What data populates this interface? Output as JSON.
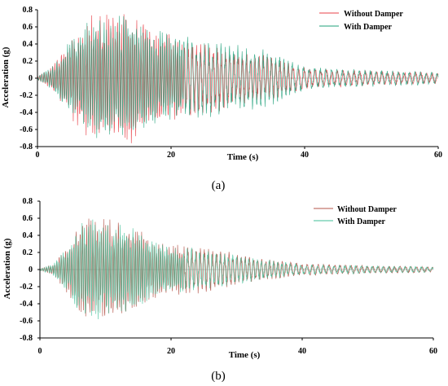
{
  "figure": {
    "panels": [
      {
        "caption": "(a)"
      },
      {
        "caption": "(b)"
      }
    ]
  },
  "colors": {
    "without_damper": "#e8424a",
    "with_damper": "#1fa07a",
    "axis": "#000000",
    "zero_line": "#9a9a9a"
  },
  "chart_data": [
    {
      "type": "line",
      "panel": "a",
      "xlabel": "Time (s)",
      "ylabel": "Acceleration (g)",
      "xlim": [
        0,
        60
      ],
      "ylim": [
        -0.8,
        0.8
      ],
      "xticks": [
        0,
        20,
        40,
        60
      ],
      "yticks": [
        -0.8,
        -0.6,
        -0.4,
        -0.2,
        0,
        0.2,
        0.4,
        0.6,
        0.8
      ],
      "legend_position": "top-right",
      "series": [
        {
          "name": "Without Damper",
          "color": "#e8424a",
          "envelope_time": [
            0,
            2,
            4,
            6,
            8,
            10,
            12,
            14,
            16,
            18,
            20,
            22,
            24,
            26,
            28,
            30,
            32,
            34,
            36,
            38,
            40,
            44,
            48,
            52,
            56,
            60
          ],
          "envelope_peak": [
            0.02,
            0.12,
            0.35,
            0.55,
            0.7,
            0.72,
            0.74,
            0.75,
            0.65,
            0.55,
            0.5,
            0.45,
            0.42,
            0.4,
            0.36,
            0.3,
            0.28,
            0.26,
            0.22,
            0.18,
            0.12,
            0.1,
            0.09,
            0.08,
            0.07,
            0.06
          ]
        },
        {
          "name": "With Damper",
          "color": "#1fa07a",
          "envelope_time": [
            0,
            2,
            4,
            6,
            8,
            10,
            12,
            14,
            16,
            18,
            20,
            22,
            24,
            26,
            28,
            30,
            32,
            34,
            36,
            38,
            40,
            44,
            48,
            52,
            56,
            60
          ],
          "envelope_peak": [
            0.02,
            0.12,
            0.35,
            0.52,
            0.66,
            0.7,
            0.7,
            0.68,
            0.62,
            0.55,
            0.5,
            0.47,
            0.45,
            0.43,
            0.4,
            0.38,
            0.36,
            0.33,
            0.28,
            0.2,
            0.14,
            0.11,
            0.1,
            0.09,
            0.08,
            0.07
          ]
        }
      ]
    },
    {
      "type": "line",
      "panel": "b",
      "xlabel": "Time (s)",
      "ylabel": "Acceleration (g)",
      "xlim": [
        0,
        60
      ],
      "ylim": [
        -0.8,
        0.8
      ],
      "xticks": [
        0,
        20,
        40,
        60
      ],
      "yticks": [
        -0.8,
        -0.6,
        -0.4,
        -0.2,
        0,
        0.2,
        0.4,
        0.6,
        0.8
      ],
      "legend_position": "top-right",
      "series": [
        {
          "name": "Without Damper",
          "color": "#b5554a",
          "envelope_time": [
            0,
            2,
            4,
            6,
            8,
            10,
            12,
            14,
            16,
            18,
            20,
            22,
            24,
            26,
            28,
            30,
            32,
            34,
            36,
            38,
            40,
            44,
            48,
            52,
            56,
            60
          ],
          "envelope_peak": [
            0.01,
            0.06,
            0.25,
            0.55,
            0.6,
            0.58,
            0.55,
            0.5,
            0.4,
            0.32,
            0.28,
            0.3,
            0.28,
            0.25,
            0.22,
            0.18,
            0.15,
            0.13,
            0.11,
            0.09,
            0.07,
            0.06,
            0.05,
            0.04,
            0.04,
            0.03
          ]
        },
        {
          "name": "With Damper",
          "color": "#3fbf97",
          "envelope_time": [
            0,
            2,
            4,
            6,
            8,
            10,
            12,
            14,
            16,
            18,
            20,
            22,
            24,
            26,
            28,
            30,
            32,
            34,
            36,
            38,
            40,
            44,
            48,
            52,
            56,
            60
          ],
          "envelope_peak": [
            0.01,
            0.06,
            0.25,
            0.52,
            0.58,
            0.56,
            0.52,
            0.48,
            0.38,
            0.3,
            0.26,
            0.26,
            0.24,
            0.22,
            0.2,
            0.17,
            0.14,
            0.12,
            0.1,
            0.08,
            0.06,
            0.05,
            0.05,
            0.04,
            0.04,
            0.03
          ]
        }
      ]
    }
  ]
}
